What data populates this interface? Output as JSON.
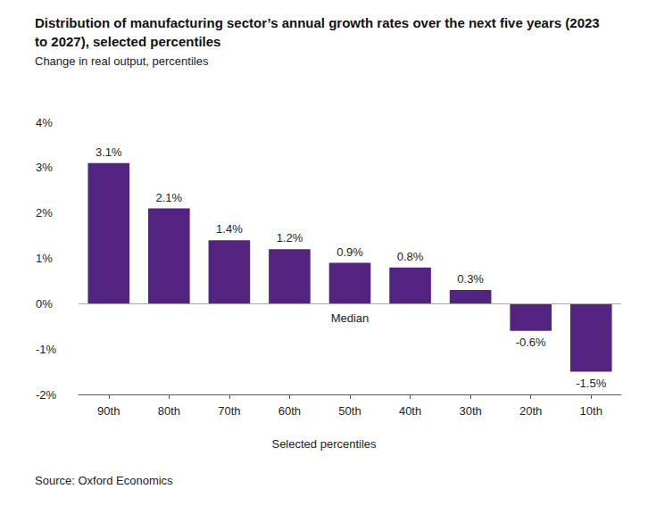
{
  "chart_data": {
    "type": "bar",
    "title": "Distribution of manufacturing sector’s annual growth rates over the next five years (2023 to 2027), selected percentiles",
    "subtitle": "Change in real output, percentiles",
    "x_label": "Selected percentiles",
    "source": "Source: Oxford Economics",
    "categories": [
      "90th",
      "80th",
      "70th",
      "60th",
      "50th",
      "40th",
      "30th",
      "20th",
      "10th"
    ],
    "values": [
      3.1,
      2.1,
      1.4,
      1.2,
      0.9,
      0.8,
      0.3,
      -0.6,
      -1.5
    ],
    "value_labels": [
      "3.1%",
      "2.1%",
      "1.4%",
      "1.2%",
      "0.9%",
      "0.8%",
      "0.3%",
      "-0.6%",
      "-1.5%"
    ],
    "color": "#52247f",
    "ylim": [
      -2,
      4
    ],
    "yticks": [
      {
        "value": -2,
        "label": "-2%"
      },
      {
        "value": -1,
        "label": "-1%"
      },
      {
        "value": 0,
        "label": "0%"
      },
      {
        "value": 1,
        "label": "1%"
      },
      {
        "value": 2,
        "label": "2%"
      },
      {
        "value": 3,
        "label": "3%"
      },
      {
        "value": 4,
        "label": "4%"
      }
    ],
    "annotations": [
      {
        "text": "Median",
        "category": "50th"
      }
    ],
    "grid": false,
    "data_labels": true
  }
}
